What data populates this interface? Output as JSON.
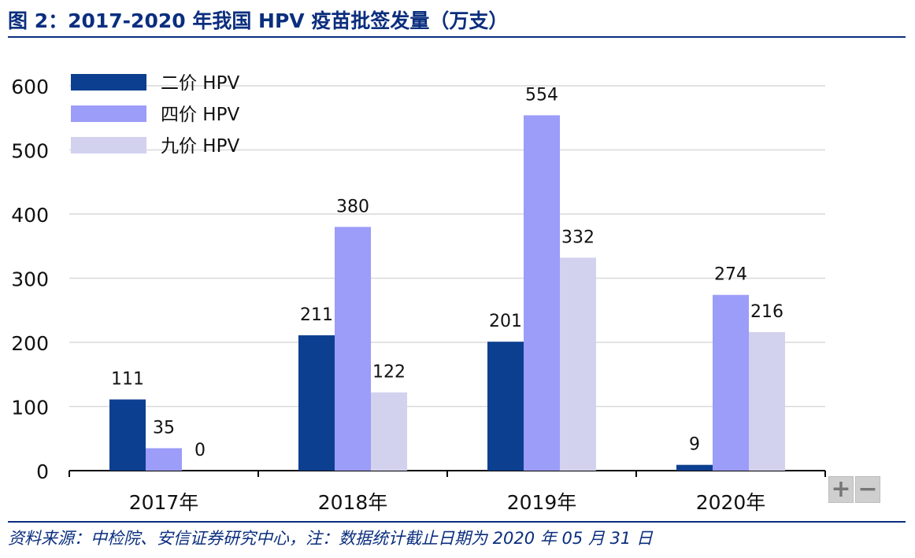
{
  "header": {
    "title": "图 2：2017-2020 年我国 HPV 疫苗批签发量（万支）"
  },
  "footer": {
    "source": "资料来源：中检院、安信证券研究中心，注：数据统计截止日期为 2020 年 05 月 31 日"
  },
  "zoom_controls": {
    "zoom_in_label": "+",
    "zoom_out_label": "−"
  },
  "colors": {
    "accent": "#0b2e7e",
    "gridline": "#d9d9d9"
  },
  "chart_data": {
    "type": "bar",
    "categories": [
      "2017年",
      "2018年",
      "2019年",
      "2020年"
    ],
    "series": [
      {
        "name": "二价 HPV",
        "values": [
          111,
          211,
          201,
          9
        ],
        "color": "#0c3f8f"
      },
      {
        "name": "四价 HPV",
        "values": [
          35,
          380,
          554,
          274
        ],
        "color": "#9c9cf9"
      },
      {
        "name": "九价 HPV",
        "values": [
          0,
          122,
          332,
          216
        ],
        "color": "#d2d2ee"
      }
    ],
    "ylim": [
      0,
      600
    ],
    "yticks": [
      0,
      100,
      200,
      300,
      400,
      500,
      600
    ],
    "grid": true,
    "legend": "top-left",
    "data_labels": true
  }
}
